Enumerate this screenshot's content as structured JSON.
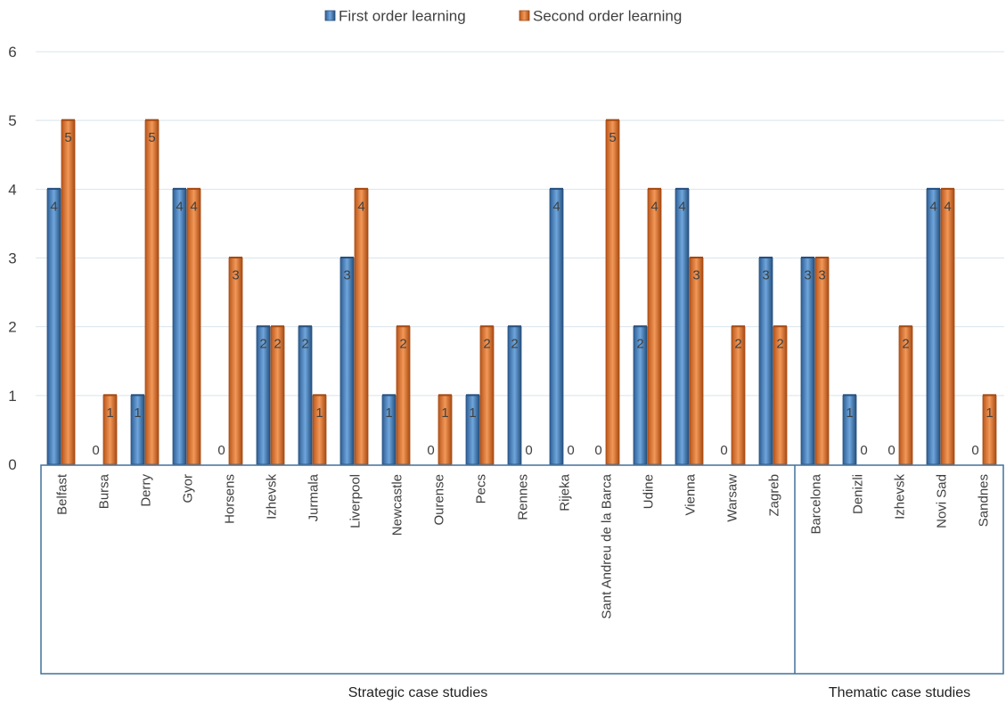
{
  "chart_data": {
    "type": "bar",
    "categories": [
      "Belfast",
      "Bursa",
      "Derry",
      "Gyor",
      "Horsens",
      "Izhevsk",
      "Jurmala",
      "Liverpool",
      "Newcastle",
      "Ourense",
      "Pecs",
      "Rennes",
      "Rijeka",
      "Sant Andreu de la Barca",
      "Udine",
      "Vienna",
      "Warsaw",
      "Zagreb",
      "Barcelona",
      "Denizli",
      "Izhevsk",
      "Novi Sad",
      "Sandnes"
    ],
    "series": [
      {
        "name": "First order learning",
        "values": [
          4,
          0,
          1,
          4,
          0,
          2,
          2,
          3,
          1,
          0,
          1,
          2,
          4,
          0,
          2,
          4,
          0,
          3,
          3,
          1,
          0,
          4,
          0
        ]
      },
      {
        "name": "Second order learning",
        "values": [
          5,
          1,
          5,
          4,
          3,
          2,
          1,
          4,
          2,
          1,
          2,
          0,
          0,
          5,
          4,
          3,
          2,
          2,
          3,
          0,
          2,
          4,
          1
        ]
      }
    ],
    "groups": [
      {
        "label": "Strategic case studies",
        "count": 18
      },
      {
        "label": "Thematic case studies",
        "count": 5
      }
    ],
    "ylim": [
      0,
      6
    ],
    "yticks": [
      0,
      1,
      2,
      3,
      4,
      5,
      6
    ],
    "grid": true,
    "data_labels": true,
    "legend_position": "top",
    "colors": {
      "series1": "#4a86c5",
      "series1_dark": "#27507e",
      "series2": "#e07b39",
      "series2_dark": "#a54a12",
      "grid": "#d9e4ee",
      "frame": "#41719c"
    }
  }
}
